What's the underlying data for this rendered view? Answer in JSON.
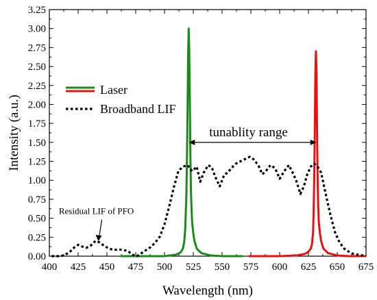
{
  "chart_data": {
    "type": "line",
    "xlabel": "Wavelength (nm)",
    "ylabel": "Intensity (a.u.)",
    "xlim": [
      400,
      675
    ],
    "ylim": [
      0,
      3.25
    ],
    "xticks": [
      400,
      425,
      450,
      475,
      500,
      525,
      550,
      575,
      600,
      625,
      650,
      675
    ],
    "yticks": [
      0,
      0.25,
      0.5,
      0.75,
      1.0,
      1.25,
      1.5,
      1.75,
      2.0,
      2.25,
      2.5,
      2.75,
      3.0,
      3.25
    ],
    "xtick_labels": [
      "400",
      "425",
      "450",
      "475",
      "500",
      "525",
      "550",
      "575",
      "600",
      "625",
      "650",
      "675"
    ],
    "ytick_labels": [
      "0.00",
      "0.25",
      "0.50",
      "0.75",
      "1.00",
      "1.25",
      "1.50",
      "1.75",
      "2.00",
      "2.25",
      "2.50",
      "2.75",
      "3.00",
      "3.25"
    ],
    "grid": false,
    "legend": "upper-left",
    "series": [
      {
        "name": "Laser",
        "color": "#1a8a1a",
        "style": "solid",
        "x": [
          462,
          500,
          510,
          514,
          516,
          517,
          518,
          519,
          519.5,
          520,
          520.5,
          521,
          521.5,
          522,
          522.5,
          523,
          523.5,
          524,
          525,
          526,
          528,
          532,
          540,
          550,
          568
        ],
        "y": [
          0,
          0,
          0.02,
          0.05,
          0.1,
          0.18,
          0.35,
          0.8,
          1.3,
          1.9,
          2.6,
          3.0,
          2.7,
          2.0,
          1.3,
          0.85,
          0.6,
          0.45,
          0.3,
          0.2,
          0.1,
          0.04,
          0.01,
          0,
          0
        ]
      },
      {
        "name": "Laser",
        "color": "#e81010",
        "style": "solid",
        "x": [
          573,
          600,
          615,
          622,
          625,
          627,
          628,
          629,
          629.5,
          630,
          630.5,
          631,
          631.5,
          632,
          632.5,
          633,
          633.5,
          634,
          635,
          636,
          638,
          642,
          650,
          660,
          675
        ],
        "y": [
          0,
          0,
          0.01,
          0.03,
          0.06,
          0.1,
          0.15,
          0.3,
          0.6,
          1.0,
          1.6,
          2.4,
          2.7,
          2.4,
          1.6,
          1.0,
          0.65,
          0.45,
          0.3,
          0.2,
          0.1,
          0.04,
          0.01,
          0,
          0
        ]
      },
      {
        "name": "Broadband LIF",
        "color": "#000000",
        "style": "dotted",
        "x": [
          402,
          410,
          414,
          418,
          422,
          425,
          428,
          432,
          436,
          440,
          444,
          448,
          452,
          456,
          460,
          464,
          468,
          472,
          476,
          480,
          484,
          488,
          492,
          496,
          500,
          504,
          508,
          512,
          516,
          520,
          524,
          528,
          531,
          534,
          538,
          541,
          544,
          548,
          552,
          555,
          558,
          562,
          566,
          570,
          574,
          578,
          582,
          585,
          588,
          592,
          596,
          600,
          604,
          608,
          612,
          615,
          618,
          621,
          624,
          627,
          630,
          633,
          636,
          640,
          644,
          648,
          652,
          656,
          660,
          664,
          668,
          672,
          675
        ],
        "y": [
          0,
          0,
          0.02,
          0.06,
          0.12,
          0.15,
          0.13,
          0.11,
          0.14,
          0.2,
          0.18,
          0.13,
          0.1,
          0.08,
          0.09,
          0.08,
          0.07,
          0.02,
          0.0,
          0.04,
          0.08,
          0.12,
          0.18,
          0.26,
          0.42,
          0.65,
          0.9,
          1.12,
          1.18,
          1.2,
          1.12,
          1.18,
          0.98,
          1.1,
          1.2,
          1.17,
          1.05,
          0.92,
          1.08,
          1.1,
          1.16,
          1.22,
          1.25,
          1.28,
          1.31,
          1.27,
          1.18,
          1.08,
          1.12,
          1.2,
          1.16,
          1.02,
          1.12,
          1.2,
          1.08,
          0.97,
          0.82,
          0.92,
          1.08,
          1.18,
          1.22,
          1.18,
          1.1,
          0.82,
          0.55,
          0.32,
          0.18,
          0.1,
          0.06,
          0.03,
          0.02,
          0.01,
          0
        ]
      }
    ],
    "legend_entries": [
      {
        "label": "Laser",
        "colors": [
          "#1a8a1a",
          "#e81010"
        ],
        "style": "solid"
      },
      {
        "label": "Broadband LIF",
        "colors": [
          "#000000"
        ],
        "style": "dotted"
      }
    ],
    "annotations": [
      {
        "text": "tunablity range",
        "type": "double-arrow",
        "x_from": 521,
        "x_to": 632,
        "y": 1.5
      },
      {
        "text": "Residual LIF of PFO",
        "type": "arrow",
        "text_x": 442,
        "text_y": 0.5,
        "arrow_to_x": 442,
        "arrow_to_y": 0.19
      }
    ]
  }
}
